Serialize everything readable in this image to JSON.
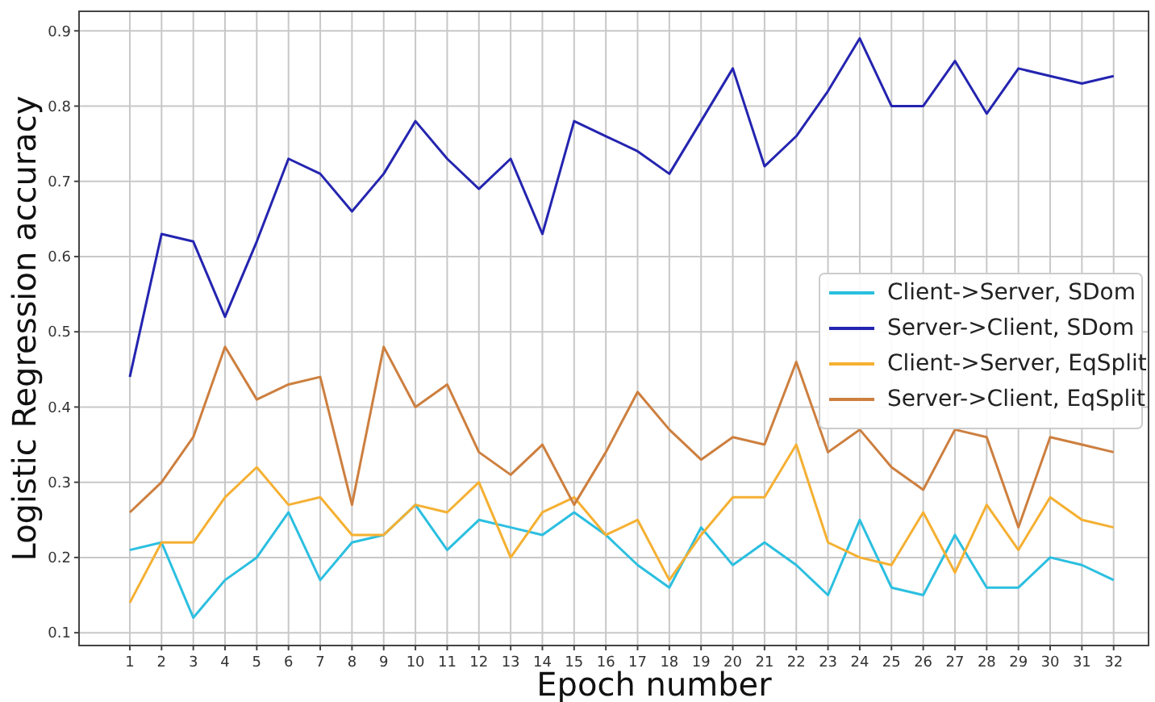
{
  "chart_data": {
    "type": "line",
    "xlabel": "Epoch number",
    "ylabel": "Logistic Regression accuracy",
    "x": [
      1,
      2,
      3,
      4,
      5,
      6,
      7,
      8,
      9,
      10,
      11,
      12,
      13,
      14,
      15,
      16,
      17,
      18,
      19,
      20,
      21,
      22,
      23,
      24,
      25,
      26,
      27,
      28,
      29,
      30,
      31,
      32
    ],
    "series": [
      {
        "name": "Client->Server, SDom",
        "color": "#2bbfe0",
        "values": [
          0.21,
          0.22,
          0.12,
          0.17,
          0.2,
          0.26,
          0.17,
          0.22,
          0.23,
          0.27,
          0.21,
          0.25,
          0.24,
          0.23,
          0.26,
          0.23,
          0.19,
          0.16,
          0.24,
          0.19,
          0.22,
          0.19,
          0.15,
          0.25,
          0.16,
          0.15,
          0.23,
          0.16,
          0.16,
          0.2,
          0.19,
          0.17
        ]
      },
      {
        "name": "Server->Client, SDom",
        "color": "#2424b0",
        "values": [
          0.44,
          0.63,
          0.62,
          0.52,
          0.62,
          0.73,
          0.71,
          0.66,
          0.71,
          0.78,
          0.73,
          0.69,
          0.73,
          0.63,
          0.78,
          0.76,
          0.74,
          0.71,
          0.78,
          0.85,
          0.72,
          0.76,
          0.82,
          0.89,
          0.8,
          0.8,
          0.86,
          0.79,
          0.85,
          0.84,
          0.83,
          0.84
        ]
      },
      {
        "name": "Client->Server, EqSplit",
        "color": "#f5b032",
        "values": [
          0.14,
          0.22,
          0.22,
          0.28,
          0.32,
          0.27,
          0.28,
          0.23,
          0.23,
          0.27,
          0.26,
          0.3,
          0.2,
          0.26,
          0.28,
          0.23,
          0.25,
          0.17,
          0.23,
          0.28,
          0.28,
          0.35,
          0.22,
          0.2,
          0.19,
          0.26,
          0.18,
          0.27,
          0.21,
          0.28,
          0.25,
          0.24
        ]
      },
      {
        "name": "Server->Client, EqSplit",
        "color": "#cd7f3f",
        "values": [
          0.26,
          0.3,
          0.36,
          0.48,
          0.41,
          0.43,
          0.44,
          0.27,
          0.48,
          0.4,
          0.43,
          0.34,
          0.31,
          0.35,
          0.27,
          0.34,
          0.42,
          0.37,
          0.33,
          0.36,
          0.35,
          0.46,
          0.34,
          0.37,
          0.32,
          0.29,
          0.37,
          0.36,
          0.24,
          0.36,
          0.35,
          0.34
        ]
      }
    ],
    "xlim": [
      -0.6,
      33.1
    ],
    "xticks": [
      1,
      2,
      3,
      4,
      5,
      6,
      7,
      8,
      9,
      10,
      11,
      12,
      13,
      14,
      15,
      16,
      17,
      18,
      19,
      20,
      21,
      22,
      23,
      24,
      25,
      26,
      27,
      28,
      29,
      30,
      31,
      32
    ],
    "ylim": [
      0.083,
      0.926
    ],
    "yticks": [
      0.1,
      0.2,
      0.3,
      0.4,
      0.5,
      0.6,
      0.7,
      0.8,
      0.9
    ],
    "grid": true,
    "legend": "right",
    "marker": "none",
    "line_style": "solid"
  }
}
